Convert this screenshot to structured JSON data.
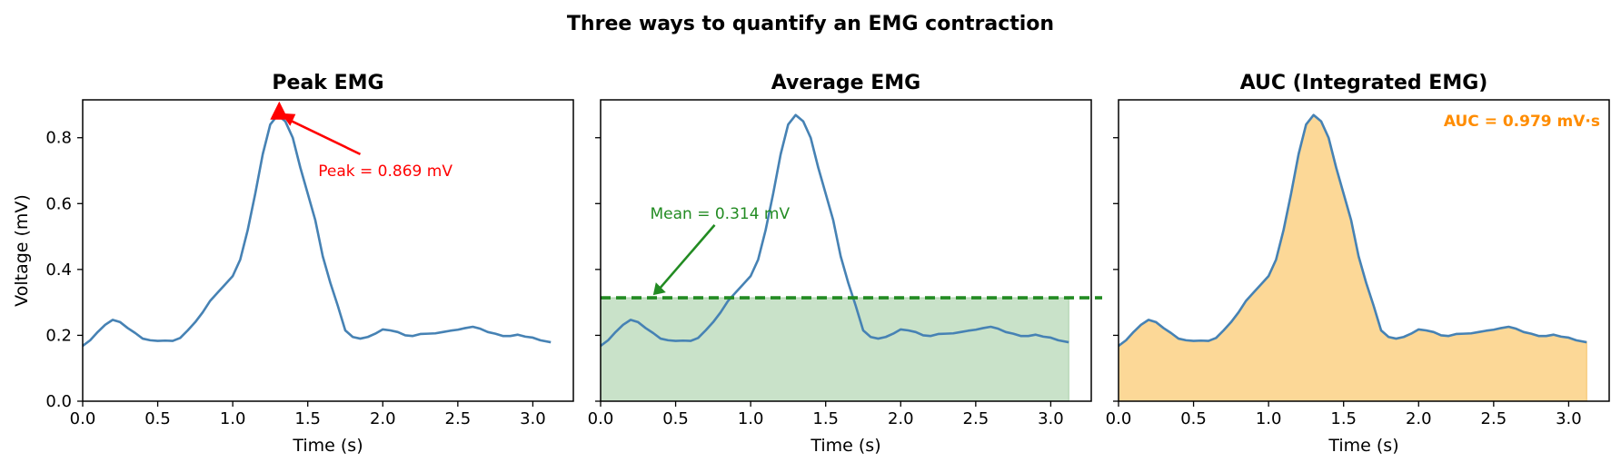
{
  "figure": {
    "suptitle": "Three ways to quantify an EMG contraction"
  },
  "colors": {
    "signal": "#4682b4",
    "peak": "#ff0000",
    "mean": "#228b22",
    "mean_fill": "#c9e2c9",
    "auc_text": "#ff8c00",
    "auc_fill": "#fcd897"
  },
  "chart_data": [
    {
      "type": "line",
      "title": "Peak EMG",
      "xlabel": "Time (s)",
      "ylabel": "Voltage (mV)",
      "xlim": [
        0,
        3.27
      ],
      "ylim": [
        0,
        0.915
      ],
      "xticks": [
        "0.0",
        "0.5",
        "1.0",
        "1.5",
        "2.0",
        "2.5",
        "3.0"
      ],
      "yticks": [
        "0.0",
        "0.2",
        "0.4",
        "0.6",
        "0.8"
      ],
      "series": [
        {
          "x": [
            0,
            0.05,
            0.1,
            0.15,
            0.2,
            0.25,
            0.3,
            0.35,
            0.4,
            0.45,
            0.5,
            0.55,
            0.6,
            0.65,
            0.7,
            0.75,
            0.8,
            0.85,
            0.9,
            0.95,
            1.0,
            1.05,
            1.1,
            1.15,
            1.2,
            1.25,
            1.3,
            1.35,
            1.4,
            1.45,
            1.5,
            1.55,
            1.6,
            1.65,
            1.7,
            1.75,
            1.8,
            1.85,
            1.9,
            1.95,
            2.0,
            2.05,
            2.1,
            2.15,
            2.2,
            2.25,
            2.3,
            2.35,
            2.4,
            2.45,
            2.5,
            2.55,
            2.6,
            2.65,
            2.7,
            2.75,
            2.8,
            2.85,
            2.9,
            2.95,
            3.0,
            3.05,
            3.12
          ],
          "y": [
            0.168,
            0.185,
            0.21,
            0.232,
            0.247,
            0.24,
            0.222,
            0.207,
            0.19,
            0.185,
            0.183,
            0.184,
            0.183,
            0.192,
            0.215,
            0.24,
            0.27,
            0.305,
            0.33,
            0.355,
            0.38,
            0.43,
            0.52,
            0.63,
            0.75,
            0.84,
            0.869,
            0.85,
            0.8,
            0.71,
            0.63,
            0.55,
            0.44,
            0.36,
            0.29,
            0.215,
            0.195,
            0.19,
            0.195,
            0.205,
            0.218,
            0.215,
            0.21,
            0.2,
            0.198,
            0.204,
            0.205,
            0.206,
            0.21,
            0.214,
            0.217,
            0.222,
            0.226,
            0.22,
            0.21,
            0.205,
            0.198,
            0.198,
            0.202,
            0.196,
            0.193,
            0.185,
            0.179
          ]
        }
      ],
      "annotation": {
        "text": "Peak = 0.869 mV",
        "point": [
          1.31,
          0.869
        ],
        "text_pos": [
          1.57,
          0.7
        ],
        "marker": "triangle"
      }
    },
    {
      "type": "line",
      "title": "Average EMG",
      "xlabel": "Time (s)",
      "xlim": [
        0,
        3.27
      ],
      "ylim": [
        0,
        0.915
      ],
      "xticks": [
        "0.0",
        "0.5",
        "1.0",
        "1.5",
        "2.0",
        "2.5",
        "3.0"
      ],
      "mean": 0.314,
      "annotation": {
        "text": "Mean = 0.314 mV",
        "point": [
          0.35,
          0.314
        ],
        "text_pos": [
          0.33,
          0.57
        ]
      }
    },
    {
      "type": "area",
      "title": "AUC (Integrated EMG)",
      "xlabel": "Time (s)",
      "xlim": [
        0,
        3.27
      ],
      "ylim": [
        0,
        0.915
      ],
      "xticks": [
        "0.0",
        "0.5",
        "1.0",
        "1.5",
        "2.0",
        "2.5",
        "3.0"
      ],
      "auc": 0.979,
      "annotation": {
        "text": "AUC = 0.979 mV·s",
        "placement": "top-right"
      }
    }
  ]
}
